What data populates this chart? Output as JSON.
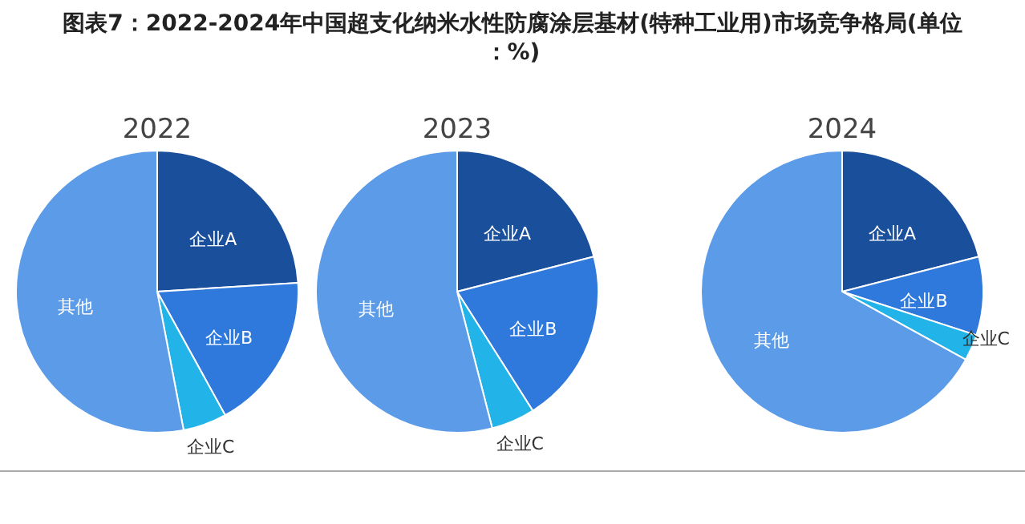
{
  "chart_data": [
    {
      "type": "pie",
      "title": "图表7：2022-2024年中国超支化纳米水性防腐涂层基材(特种工业用)市场竞争格局(单位：%)",
      "subtitle": "2022",
      "categories": [
        "企业A",
        "企业B",
        "企业C",
        "其他"
      ],
      "values": [
        24,
        18,
        5,
        53
      ],
      "colors": [
        "#1a4f9c",
        "#2f78dc",
        "#22b4e8",
        "#5b9be8"
      ]
    },
    {
      "type": "pie",
      "subtitle": "2023",
      "categories": [
        "企业A",
        "企业B",
        "企业C",
        "其他"
      ],
      "values": [
        21,
        20,
        5,
        54
      ],
      "colors": [
        "#1a4f9c",
        "#2f78dc",
        "#22b4e8",
        "#5b9be8"
      ]
    },
    {
      "type": "pie",
      "subtitle": "2024",
      "categories": [
        "企业A",
        "企业B",
        "企业C",
        "其他"
      ],
      "values": [
        21,
        9,
        3,
        67
      ],
      "colors": [
        "#1a4f9c",
        "#2f78dc",
        "#22b4e8",
        "#5b9be8"
      ]
    }
  ]
}
